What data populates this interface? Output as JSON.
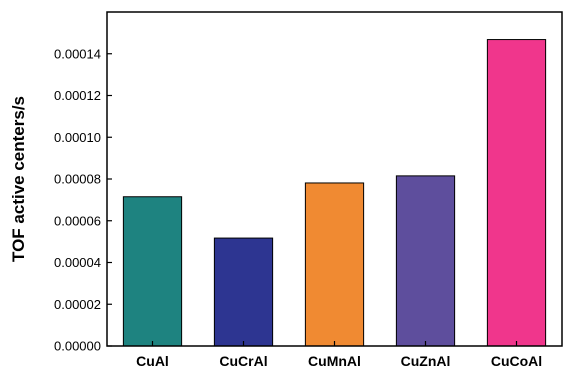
{
  "chart_data": {
    "type": "bar",
    "title": "",
    "xlabel": "",
    "ylabel": "TOF active centers/s",
    "categories": [
      "CuAl",
      "CuCrAl",
      "CuMnAl",
      "CuZnAl",
      "CuCoAl"
    ],
    "values": [
      7.15e-05,
      5.17e-05,
      7.81e-05,
      8.15e-05,
      0.0001468
    ],
    "colors": [
      "#1e8380",
      "#2d3591",
      "#f08a32",
      "#5e4e9d",
      "#f0368c"
    ],
    "ylim": [
      0,
      0.00016
    ],
    "yticks": [
      0,
      2e-05,
      4e-05,
      6e-05,
      8e-05,
      0.0001,
      0.00012,
      0.00014
    ],
    "ytick_labels": [
      "0.00000",
      "0.00002",
      "0.00004",
      "0.00006",
      "0.00008",
      "0.00010",
      "0.00012",
      "0.00014"
    ],
    "grid": false,
    "legend": "none"
  }
}
